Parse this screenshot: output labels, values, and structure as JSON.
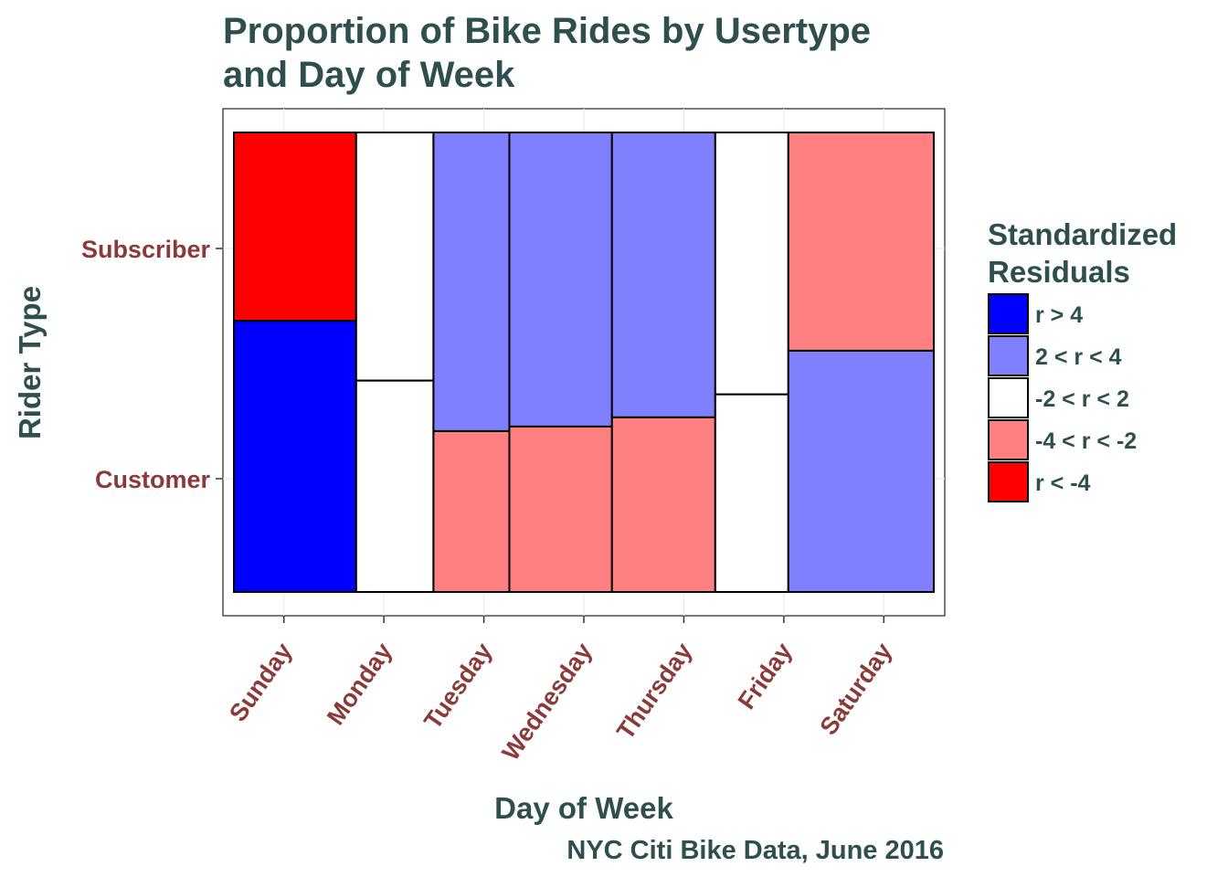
{
  "chart_data": {
    "type": "mosaic",
    "title_lines": [
      "Proportion of Bike Rides by Usertype",
      "and Day of Week"
    ],
    "xlabel": "Day of Week",
    "ylabel": "Rider Type",
    "caption": "NYC Citi Bike Data, June 2016",
    "y_categories": [
      "Subscriber",
      "Customer"
    ],
    "legend": {
      "title_lines": [
        "Standardized",
        "Residuals"
      ],
      "position": "right",
      "entries": [
        {
          "label": "r > 4",
          "color": "#0000ff"
        },
        {
          "label": "2 < r < 4",
          "color": "#8080ff"
        },
        {
          "label": "-2 < r < 2",
          "color": "#ffffff"
        },
        {
          "label": "-4 < r < -2",
          "color": "#ff8080"
        },
        {
          "label": "r < -4",
          "color": "#ff0000"
        }
      ]
    },
    "x_categories": [
      "Sunday",
      "Monday",
      "Tuesday",
      "Wednesday",
      "Thursday",
      "Friday",
      "Saturday"
    ],
    "columns": [
      {
        "day": "Sunday",
        "width": 0.174,
        "subscriber_share": 0.41,
        "subscriber_color": "#ff0000",
        "customer_color": "#0000ff"
      },
      {
        "day": "Monday",
        "width": 0.11,
        "subscriber_share": 0.54,
        "subscriber_color": "#ffffff",
        "customer_color": "#ffffff"
      },
      {
        "day": "Tuesday",
        "width": 0.108,
        "subscriber_share": 0.65,
        "subscriber_color": "#8080ff",
        "customer_color": "#ff8080"
      },
      {
        "day": "Wednesday",
        "width": 0.146,
        "subscriber_share": 0.64,
        "subscriber_color": "#8080ff",
        "customer_color": "#ff8080"
      },
      {
        "day": "Thursday",
        "width": 0.147,
        "subscriber_share": 0.62,
        "subscriber_color": "#8080ff",
        "customer_color": "#ff8080"
      },
      {
        "day": "Friday",
        "width": 0.104,
        "subscriber_share": 0.57,
        "subscriber_color": "#ffffff",
        "customer_color": "#ffffff"
      },
      {
        "day": "Saturday",
        "width": 0.207,
        "subscriber_share": 0.475,
        "subscriber_color": "#ff8080",
        "customer_color": "#8080ff"
      }
    ]
  }
}
